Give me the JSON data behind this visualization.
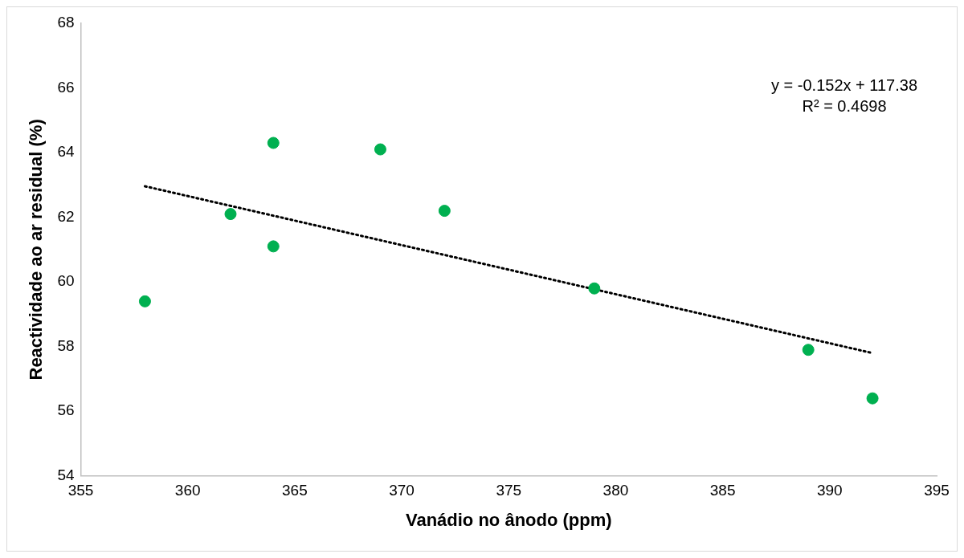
{
  "chart_data": {
    "type": "scatter",
    "xlabel": "Vanádio no ânodo (ppm)",
    "ylabel": "Reactividade ao ar residual (%)",
    "xlim": [
      355,
      395
    ],
    "xticks": [
      355,
      360,
      365,
      370,
      375,
      380,
      385,
      390,
      395
    ],
    "ylim": [
      54,
      68
    ],
    "yticks": [
      54,
      56,
      58,
      60,
      62,
      64,
      66,
      68
    ],
    "grid": false,
    "legend": false,
    "marker": "circle",
    "series": [
      {
        "type": "scatter",
        "color": "#00b050",
        "x": [
          358,
          362,
          364,
          364,
          369,
          372,
          379,
          389,
          392
        ],
        "values": [
          59.4,
          62.1,
          64.3,
          61.1,
          64.1,
          62.2,
          59.8,
          57.9,
          56.4
        ]
      },
      {
        "type": "line",
        "color": "#000000",
        "line_style": "dotted",
        "marker": "none",
        "x": [
          358,
          392
        ],
        "values": [
          62.96,
          57.8
        ]
      }
    ],
    "annotations": [
      "y = -0.152x + 117.38",
      "R² = 0.4698"
    ]
  }
}
